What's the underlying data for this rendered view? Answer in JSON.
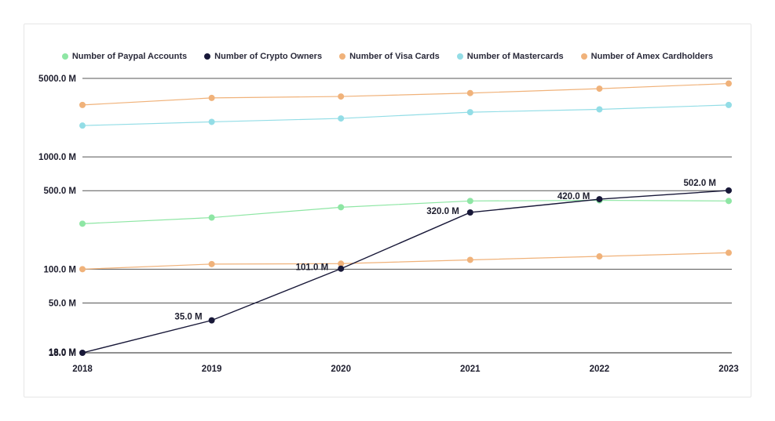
{
  "chart_data": {
    "type": "line",
    "title": "",
    "xlabel": "",
    "ylabel": "",
    "y_scale": "log",
    "ylim": [
      18,
      5000
    ],
    "x": [
      "2018",
      "2019",
      "2020",
      "2021",
      "2022",
      "2023"
    ],
    "y_ticks": [
      {
        "value": 5000,
        "label": "5000.0 M"
      },
      {
        "value": 1000,
        "label": "1000.0 M"
      },
      {
        "value": 500,
        "label": "500.0 M"
      },
      {
        "value": 100,
        "label": "100.0 M"
      },
      {
        "value": 50,
        "label": "50.0 M"
      },
      {
        "value": 18,
        "label": "18.0 M"
      }
    ],
    "legend_position": "top",
    "series": [
      {
        "name": "Number of Paypal Accounts",
        "color": "#8ee6a4",
        "values": [
          254,
          288,
          356,
          405,
          410,
          405
        ]
      },
      {
        "name": "Number of Crypto Owners",
        "color": "#181838",
        "values": [
          18,
          35,
          101,
          320,
          420,
          502
        ],
        "labels": [
          "18.0 M",
          "35.0 M",
          "101.0 M",
          "320.0 M",
          "420.0 M",
          "502.0 M"
        ]
      },
      {
        "name": "Number of Visa Cards",
        "color": "#f0b27a",
        "values": [
          100,
          111,
          112,
          121,
          130,
          140
        ]
      },
      {
        "name": "Number of Mastercards",
        "color": "#93dde6",
        "values": [
          1900,
          2050,
          2200,
          2500,
          2650,
          2900
        ]
      },
      {
        "name": "Number of Amex Cardholders",
        "color": "#f0b27a",
        "values": [
          2900,
          3350,
          3450,
          3700,
          4050,
          4500
        ]
      }
    ]
  }
}
